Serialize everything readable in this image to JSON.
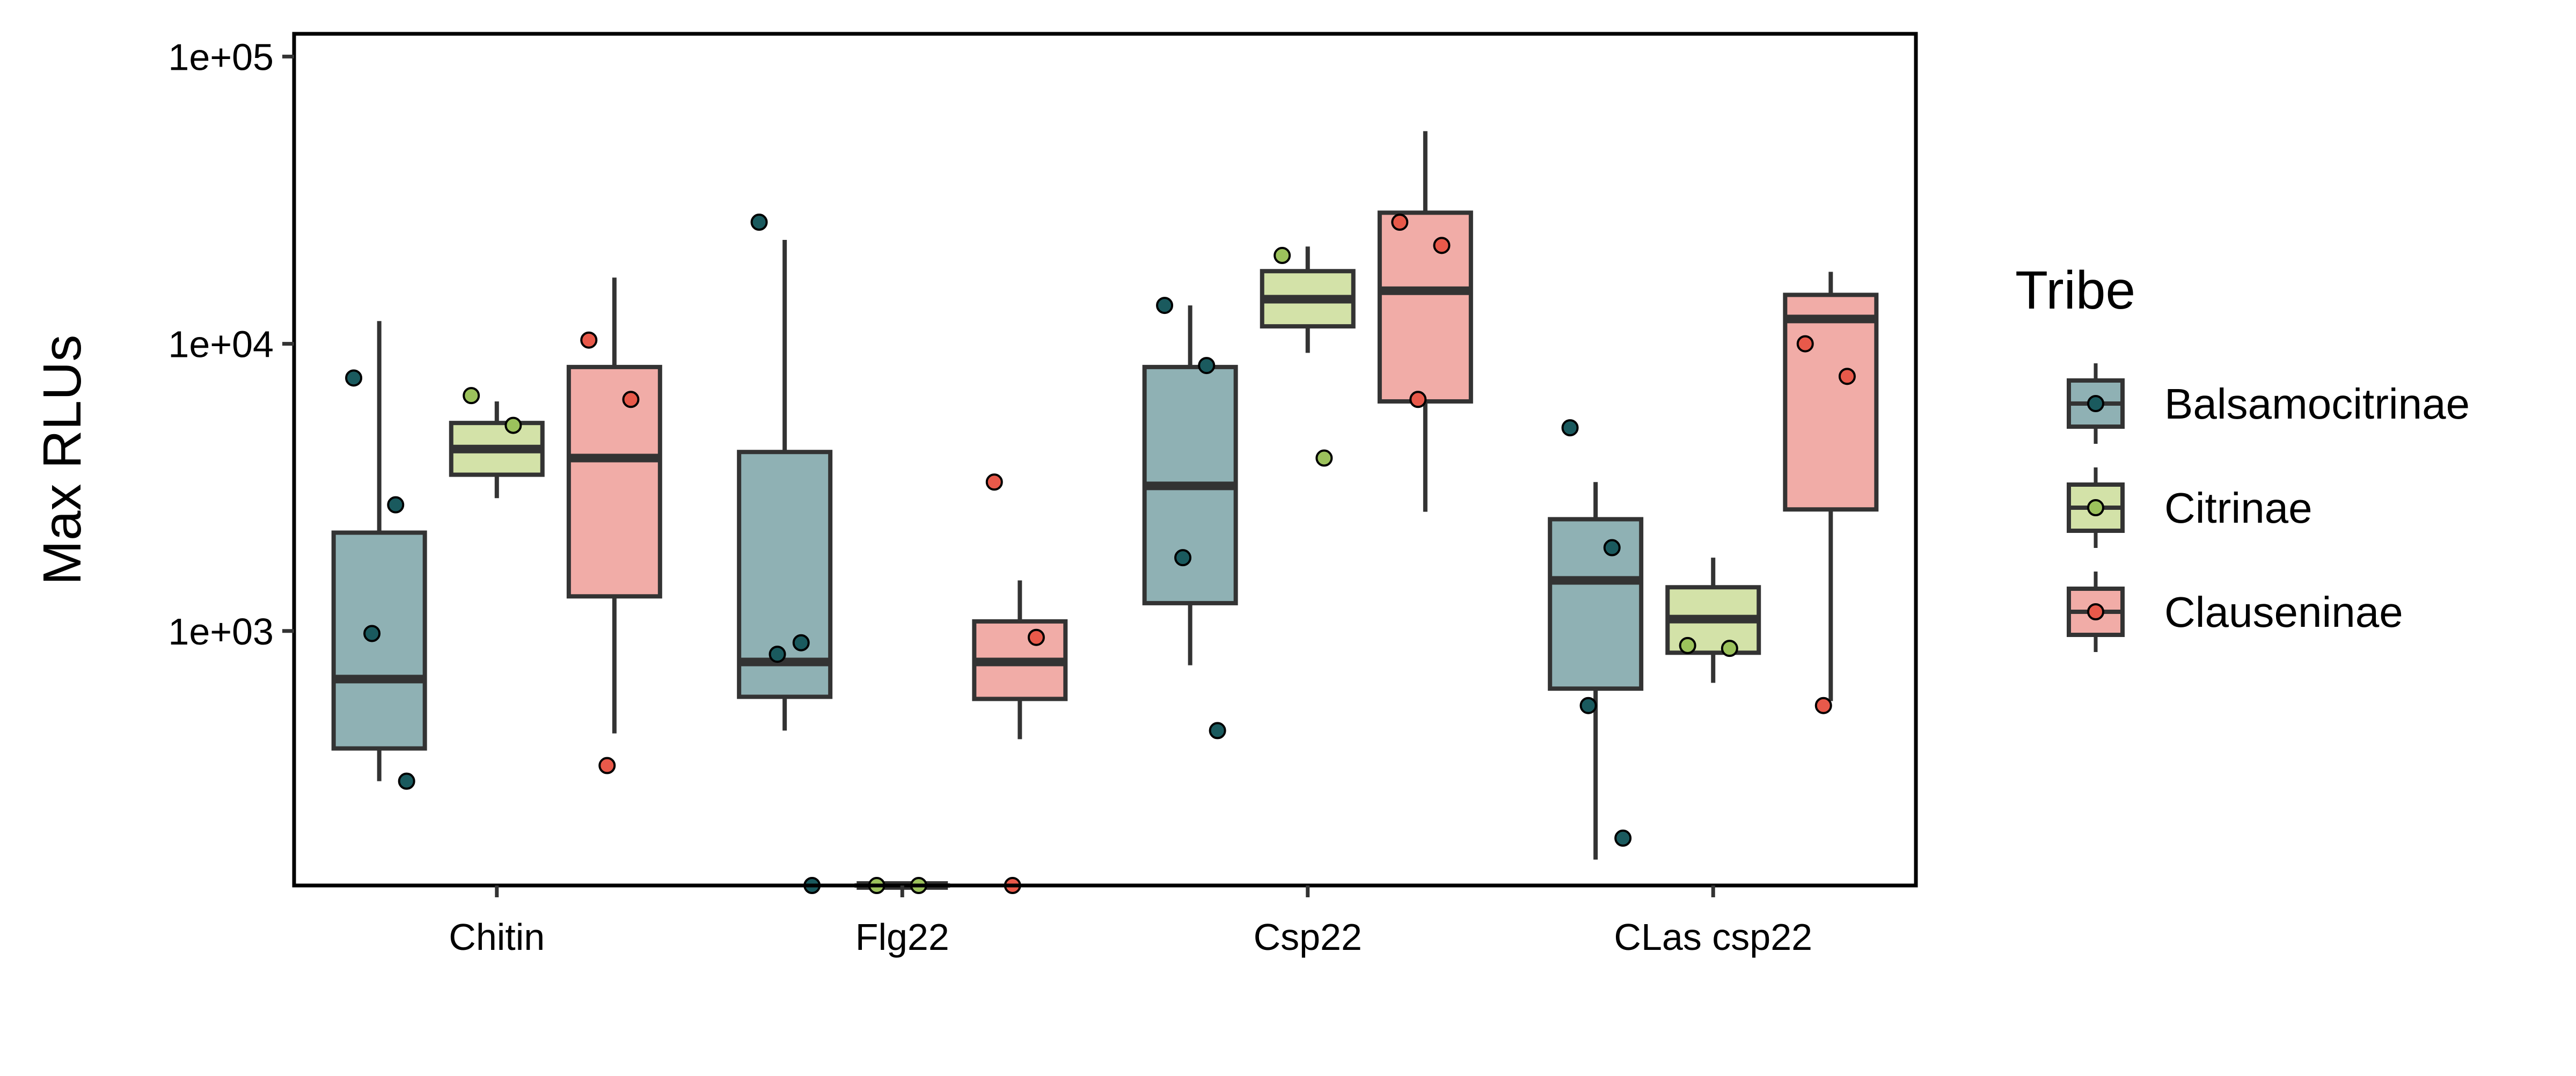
{
  "chart_data": {
    "type": "boxplot",
    "title": "",
    "xlabel": "",
    "ylabel": "Max RLUs",
    "y_scale": "log10",
    "ylim": [
      130,
      120000
    ],
    "y_ticks": [
      {
        "value": 1000,
        "label": "1e+03"
      },
      {
        "value": 10000,
        "label": "1e+04"
      },
      {
        "value": 100000,
        "label": "1e+05"
      }
    ],
    "grid": false,
    "categories": [
      "Chitin",
      "Flg22",
      "Csp22",
      "CLas csp22"
    ],
    "legend": {
      "title": "Tribe",
      "position": "right",
      "entries": [
        "Balsamocitrinae",
        "Citrinae",
        "Clauseninae"
      ]
    },
    "series": [
      {
        "name": "Balsamocitrinae",
        "fill": "#8fb1b4",
        "point_color": "#1a5a5e",
        "boxes": [
          {
            "category": "Chitin",
            "whisker_low": 300,
            "q1": 390,
            "median": 680,
            "q3": 2200,
            "whisker_high": 12000,
            "points": [
              7600,
              2750,
              980,
              300
            ]
          },
          {
            "category": "Flg22",
            "whisker_low": 450,
            "q1": 590,
            "median": 780,
            "q3": 4200,
            "whisker_high": 23000,
            "points": [
              26500,
              910,
              830,
              130
            ]
          },
          {
            "category": "Csp22",
            "whisker_low": 760,
            "q1": 1250,
            "median": 3200,
            "q3": 8300,
            "whisker_high": 13600,
            "points": [
              13600,
              8400,
              1800,
              450
            ]
          },
          {
            "category": "CLas csp22",
            "whisker_low": 160,
            "q1": 630,
            "median": 1500,
            "q3": 2450,
            "whisker_high": 3300,
            "points": [
              5100,
              1950,
              550,
              190
            ]
          }
        ]
      },
      {
        "name": "Citrinae",
        "fill": "#d3e2a8",
        "point_color": "#9cc25c",
        "boxes": [
          {
            "category": "Chitin",
            "whisker_low": 2900,
            "q1": 3500,
            "median": 4300,
            "q3": 5300,
            "whisker_high": 6300,
            "points": [
              6600,
              5200
            ]
          },
          {
            "category": "Flg22",
            "whisker_low": 130,
            "q1": 130,
            "median": 130,
            "q3": 130,
            "whisker_high": 130,
            "points": [
              130,
              130
            ]
          },
          {
            "category": "Csp22",
            "whisker_low": 9300,
            "q1": 11500,
            "median": 14300,
            "q3": 17900,
            "whisker_high": 21800,
            "points": [
              20300,
              4000
            ]
          },
          {
            "category": "CLas csp22",
            "whisker_low": 660,
            "q1": 840,
            "median": 1100,
            "q3": 1420,
            "whisker_high": 1800,
            "points": [
              890,
              870
            ]
          }
        ]
      },
      {
        "name": "Clauseninae",
        "fill": "#f1aca7",
        "point_color": "#e8594a",
        "boxes": [
          {
            "category": "Chitin",
            "whisker_low": 440,
            "q1": 1320,
            "median": 4000,
            "q3": 8300,
            "whisker_high": 17000,
            "points": [
              10300,
              6400,
              340
            ]
          },
          {
            "category": "Flg22",
            "whisker_low": 420,
            "q1": 580,
            "median": 780,
            "q3": 1080,
            "whisker_high": 1500,
            "points": [
              3300,
              950,
              130
            ]
          },
          {
            "category": "Csp22",
            "whisker_low": 2600,
            "q1": 6300,
            "median": 15300,
            "q3": 28600,
            "whisker_high": 55000,
            "points": [
              26500,
              22000,
              6400
            ]
          },
          {
            "category": "CLas csp22",
            "whisker_low": 570,
            "q1": 2650,
            "median": 12200,
            "q3": 14800,
            "whisker_high": 17800,
            "points": [
              10000,
              7700,
              550
            ]
          }
        ]
      }
    ]
  }
}
